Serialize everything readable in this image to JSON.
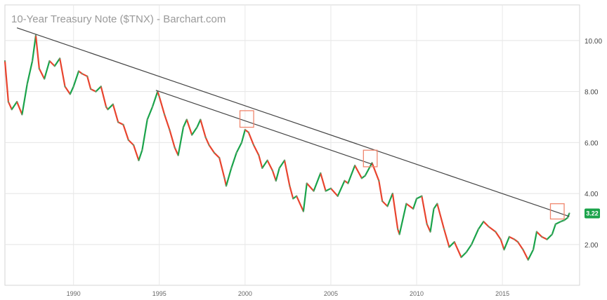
{
  "chart_data": {
    "type": "line",
    "title": "10-Year Treasury Note ($TNX) - Barchart.com",
    "subtitle": "",
    "xlabel": "",
    "ylabel": "",
    "xlim": [
      1986.0,
      2019.5
    ],
    "ylim": [
      0.4,
      11.4
    ],
    "grid": true,
    "y_ticks": [
      {
        "value": 2,
        "label": "2.00"
      },
      {
        "value": 4,
        "label": "4.00"
      },
      {
        "value": 6,
        "label": "6.00"
      },
      {
        "value": 8,
        "label": "8.00"
      },
      {
        "value": 10,
        "label": "10.00"
      }
    ],
    "x_ticks": [
      {
        "value": 1990,
        "label": "1990"
      },
      {
        "value": 1995,
        "label": "1995"
      },
      {
        "value": 2000,
        "label": "2000"
      },
      {
        "value": 2005,
        "label": "2005"
      },
      {
        "value": 2010,
        "label": "2010"
      },
      {
        "value": 2015,
        "label": "2015"
      }
    ],
    "series": [
      {
        "up_color": "#1aa34a",
        "down_color": "#e8442e",
        "points": [
          [
            1986.0,
            9.2
          ],
          [
            1986.2,
            7.6
          ],
          [
            1986.4,
            7.3
          ],
          [
            1986.7,
            7.6
          ],
          [
            1987.0,
            7.1
          ],
          [
            1987.3,
            8.3
          ],
          [
            1987.6,
            9.2
          ],
          [
            1987.8,
            10.2
          ],
          [
            1988.0,
            8.9
          ],
          [
            1988.3,
            8.5
          ],
          [
            1988.6,
            9.2
          ],
          [
            1988.9,
            9.0
          ],
          [
            1989.2,
            9.3
          ],
          [
            1989.5,
            8.2
          ],
          [
            1989.8,
            7.9
          ],
          [
            1990.0,
            8.2
          ],
          [
            1990.3,
            8.8
          ],
          [
            1990.5,
            8.7
          ],
          [
            1990.8,
            8.6
          ],
          [
            1991.0,
            8.1
          ],
          [
            1991.3,
            8.0
          ],
          [
            1991.6,
            8.2
          ],
          [
            1991.9,
            7.4
          ],
          [
            1992.0,
            7.3
          ],
          [
            1992.3,
            7.5
          ],
          [
            1992.6,
            6.8
          ],
          [
            1992.9,
            6.7
          ],
          [
            1993.2,
            6.1
          ],
          [
            1993.5,
            5.9
          ],
          [
            1993.8,
            5.3
          ],
          [
            1994.0,
            5.7
          ],
          [
            1994.3,
            6.9
          ],
          [
            1994.6,
            7.4
          ],
          [
            1994.9,
            8.0
          ],
          [
            1995.0,
            7.8
          ],
          [
            1995.3,
            7.1
          ],
          [
            1995.6,
            6.5
          ],
          [
            1995.9,
            5.8
          ],
          [
            1996.1,
            5.5
          ],
          [
            1996.4,
            6.6
          ],
          [
            1996.6,
            6.9
          ],
          [
            1996.9,
            6.3
          ],
          [
            1997.2,
            6.6
          ],
          [
            1997.4,
            6.9
          ],
          [
            1997.7,
            6.2
          ],
          [
            1997.9,
            5.9
          ],
          [
            1998.2,
            5.6
          ],
          [
            1998.5,
            5.4
          ],
          [
            1998.8,
            4.6
          ],
          [
            1998.9,
            4.3
          ],
          [
            1999.2,
            5.0
          ],
          [
            1999.5,
            5.6
          ],
          [
            1999.8,
            6.0
          ],
          [
            2000.0,
            6.5
          ],
          [
            2000.2,
            6.4
          ],
          [
            2000.5,
            5.9
          ],
          [
            2000.8,
            5.5
          ],
          [
            2001.0,
            5.0
          ],
          [
            2001.3,
            5.3
          ],
          [
            2001.6,
            4.9
          ],
          [
            2001.8,
            4.5
          ],
          [
            2002.0,
            5.0
          ],
          [
            2002.3,
            5.3
          ],
          [
            2002.6,
            4.3
          ],
          [
            2002.8,
            3.8
          ],
          [
            2003.0,
            3.9
          ],
          [
            2003.4,
            3.3
          ],
          [
            2003.6,
            4.4
          ],
          [
            2004.0,
            4.1
          ],
          [
            2004.4,
            4.8
          ],
          [
            2004.7,
            4.1
          ],
          [
            2005.0,
            4.2
          ],
          [
            2005.4,
            3.9
          ],
          [
            2005.8,
            4.5
          ],
          [
            2006.0,
            4.4
          ],
          [
            2006.4,
            5.1
          ],
          [
            2006.8,
            4.6
          ],
          [
            2007.0,
            4.7
          ],
          [
            2007.4,
            5.2
          ],
          [
            2007.8,
            4.5
          ],
          [
            2008.0,
            3.7
          ],
          [
            2008.3,
            3.5
          ],
          [
            2008.6,
            4.0
          ],
          [
            2008.9,
            2.6
          ],
          [
            2009.0,
            2.4
          ],
          [
            2009.4,
            3.6
          ],
          [
            2009.8,
            3.4
          ],
          [
            2010.0,
            3.8
          ],
          [
            2010.3,
            3.9
          ],
          [
            2010.6,
            2.8
          ],
          [
            2010.8,
            2.5
          ],
          [
            2011.0,
            3.4
          ],
          [
            2011.2,
            3.6
          ],
          [
            2011.6,
            2.6
          ],
          [
            2011.9,
            1.9
          ],
          [
            2012.2,
            2.1
          ],
          [
            2012.6,
            1.5
          ],
          [
            2012.9,
            1.7
          ],
          [
            2013.2,
            2.0
          ],
          [
            2013.6,
            2.6
          ],
          [
            2013.9,
            2.9
          ],
          [
            2014.2,
            2.7
          ],
          [
            2014.6,
            2.5
          ],
          [
            2014.9,
            2.2
          ],
          [
            2015.1,
            1.8
          ],
          [
            2015.4,
            2.3
          ],
          [
            2015.7,
            2.2
          ],
          [
            2015.9,
            2.1
          ],
          [
            2016.2,
            1.8
          ],
          [
            2016.5,
            1.4
          ],
          [
            2016.8,
            1.8
          ],
          [
            2017.0,
            2.5
          ],
          [
            2017.3,
            2.3
          ],
          [
            2017.6,
            2.2
          ],
          [
            2017.9,
            2.4
          ],
          [
            2018.1,
            2.8
          ],
          [
            2018.4,
            2.9
          ],
          [
            2018.6,
            2.95
          ],
          [
            2018.8,
            3.05
          ],
          [
            2018.9,
            3.22
          ]
        ]
      }
    ],
    "trendlines": [
      {
        "from": [
          1986.7,
          10.5
        ],
        "to": [
          2018.9,
          3.1
        ],
        "color": "#444444"
      },
      {
        "from": [
          1994.8,
          8.05
        ],
        "to": [
          2007.4,
          5.15
        ],
        "color": "#444444"
      }
    ],
    "highlight_boxes": [
      {
        "x0": 1999.7,
        "x1": 2000.5,
        "y0": 6.6,
        "y1": 7.25,
        "color": "#f0876e"
      },
      {
        "x0": 2006.9,
        "x1": 2007.7,
        "y0": 5.05,
        "y1": 5.7,
        "color": "#f0876e"
      },
      {
        "x0": 2017.8,
        "x1": 2018.6,
        "y0": 3.0,
        "y1": 3.6,
        "color": "#f0876e"
      }
    ],
    "last_value": {
      "value": 3.22,
      "label": "3.22",
      "color": "#1aa34a"
    }
  }
}
